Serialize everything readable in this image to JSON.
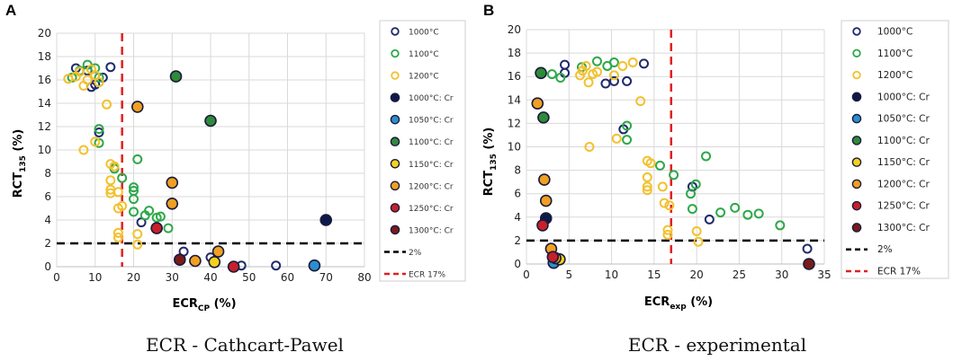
{
  "panel_labels": [
    "A",
    "B"
  ],
  "captions": [
    "ECR - Cathcart-Pawel",
    "ECR - experimental"
  ],
  "legend_entries": [
    {
      "label": "1000°C",
      "color": "#1f2a6b",
      "fill": "none"
    },
    {
      "label": "1100°C",
      "color": "#2ea84a",
      "fill": "none"
    },
    {
      "label": "1200°C",
      "color": "#f2c12e",
      "fill": "none"
    },
    {
      "label": "1000°C: Cr",
      "color": "#1f2a6b",
      "fill": "#0c1a4a"
    },
    {
      "label": "1050°C: Cr",
      "color": "#1f2a6b",
      "fill": "#2b8fce"
    },
    {
      "label": "1100°C: Cr",
      "color": "#1f2a6b",
      "fill": "#2e8b3a"
    },
    {
      "label": "1150°C: Cr",
      "color": "#1f2a6b",
      "fill": "#f5d21a"
    },
    {
      "label": "1200°C: Cr",
      "color": "#1f2a6b",
      "fill": "#f0a020"
    },
    {
      "label": "1250°C: Cr",
      "color": "#1f2a6b",
      "fill": "#c8202a"
    },
    {
      "label": "1300°C: Cr",
      "color": "#1f2a6b",
      "fill": "#7a1a1a"
    },
    {
      "label": "2%",
      "color": "#000000",
      "line": "dash"
    },
    {
      "label": "ECR 17%",
      "color": "#e02020",
      "line": "dash"
    }
  ],
  "chart_data": [
    {
      "type": "scatter",
      "title": "",
      "xlabel": "ECR",
      "xlabel_sub": "CP",
      "xlabel_suffix": " (%)",
      "ylabel": "RCT",
      "ylabel_sub": "135",
      "ylabel_suffix": " (%)",
      "xlim": [
        0,
        80
      ],
      "ylim": [
        0,
        20
      ],
      "xticks": [
        0,
        10,
        20,
        30,
        40,
        50,
        60,
        70,
        80
      ],
      "yticks": [
        0,
        2,
        4,
        6,
        8,
        10,
        12,
        14,
        16,
        18,
        20
      ],
      "hline": 2,
      "vline": 17,
      "series": [
        {
          "name": "1000°C",
          "points": [
            [
              5,
              17.0
            ],
            [
              8,
              16.8
            ],
            [
              9,
              15.4
            ],
            [
              10,
              15.6
            ],
            [
              12,
              16.2
            ],
            [
              14,
              17.1
            ],
            [
              11,
              11.5
            ],
            [
              22,
              3.8
            ],
            [
              33,
              1.3
            ],
            [
              40,
              0.8
            ],
            [
              48,
              0.1
            ],
            [
              57,
              0.1
            ]
          ]
        },
        {
          "name": "1100°C",
          "points": [
            [
              4,
              16.2
            ],
            [
              6,
              16.8
            ],
            [
              8,
              17.3
            ],
            [
              10,
              17.0
            ],
            [
              11,
              16.2
            ],
            [
              11,
              11.8
            ],
            [
              11,
              10.6
            ],
            [
              15,
              8.4
            ],
            [
              17,
              7.6
            ],
            [
              20,
              6.8
            ],
            [
              20,
              5.8
            ],
            [
              20,
              6.5
            ],
            [
              20,
              4.7
            ],
            [
              21,
              9.2
            ],
            [
              23,
              4.4
            ],
            [
              24,
              4.8
            ],
            [
              26,
              4.2
            ],
            [
              27,
              4.3
            ],
            [
              29,
              3.3
            ]
          ]
        },
        {
          "name": "1200°C",
          "points": [
            [
              3,
              16.1
            ],
            [
              5,
              16.3
            ],
            [
              6,
              16.7
            ],
            [
              7,
              15.5
            ],
            [
              8,
              16.0
            ],
            [
              9,
              16.9
            ],
            [
              10,
              16.4
            ],
            [
              11,
              15.8
            ],
            [
              13,
              13.9
            ],
            [
              7,
              10.0
            ],
            [
              10,
              10.7
            ],
            [
              14,
              8.8
            ],
            [
              15,
              8.6
            ],
            [
              14,
              7.4
            ],
            [
              14,
              6.6
            ],
            [
              14,
              6.3
            ],
            [
              16,
              6.4
            ],
            [
              17,
              5.2
            ],
            [
              16,
              5.0
            ],
            [
              16,
              2.9
            ],
            [
              16,
              2.5
            ],
            [
              21,
              2.8
            ],
            [
              21,
              1.9
            ]
          ]
        },
        {
          "name": "1000°C: Cr",
          "points": [
            [
              70,
              4.0
            ]
          ]
        },
        {
          "name": "1050°C: Cr",
          "points": [
            [
              67,
              0.1
            ]
          ]
        },
        {
          "name": "1100°C: Cr",
          "points": [
            [
              31,
              16.3
            ],
            [
              40,
              12.5
            ]
          ]
        },
        {
          "name": "1150°C: Cr",
          "points": [
            [
              41,
              0.4
            ]
          ]
        },
        {
          "name": "1200°C: Cr",
          "points": [
            [
              21,
              13.7
            ],
            [
              30,
              7.2
            ],
            [
              30,
              5.4
            ],
            [
              42,
              1.3
            ],
            [
              36,
              0.5
            ]
          ]
        },
        {
          "name": "1250°C: Cr",
          "points": [
            [
              26,
              3.3
            ],
            [
              46,
              0.0
            ]
          ]
        },
        {
          "name": "1300°C: Cr",
          "points": [
            [
              32,
              0.6
            ]
          ]
        }
      ]
    },
    {
      "type": "scatter",
      "title": "",
      "xlabel": "ECR",
      "xlabel_sub": "exp",
      "xlabel_suffix": " (%)",
      "ylabel": "RCT",
      "ylabel_sub": "135",
      "ylabel_suffix": " (%)",
      "xlim": [
        0,
        35
      ],
      "ylim": [
        0,
        20
      ],
      "xticks": [
        0,
        5,
        10,
        15,
        20,
        25,
        30,
        35
      ],
      "yticks": [
        0,
        2,
        4,
        6,
        8,
        10,
        12,
        14,
        16,
        18,
        20
      ],
      "hline": 2,
      "vline": 17,
      "series": [
        {
          "name": "1000°C",
          "points": [
            [
              4.5,
              17.0
            ],
            [
              4.5,
              16.3
            ],
            [
              9.3,
              15.4
            ],
            [
              10.3,
              15.6
            ],
            [
              11.8,
              15.6
            ],
            [
              13.8,
              17.1
            ],
            [
              11.4,
              11.5
            ],
            [
              19.5,
              6.6
            ],
            [
              21.5,
              3.8
            ],
            [
              33,
              1.3
            ]
          ]
        },
        {
          "name": "1100°C",
          "points": [
            [
              3.0,
              16.2
            ],
            [
              4.0,
              15.9
            ],
            [
              6.5,
              16.8
            ],
            [
              8.3,
              17.3
            ],
            [
              9.5,
              16.9
            ],
            [
              10.3,
              17.2
            ],
            [
              11.8,
              11.8
            ],
            [
              11.8,
              10.6
            ],
            [
              15.7,
              8.4
            ],
            [
              17.3,
              7.6
            ],
            [
              19.3,
              6.0
            ],
            [
              19.5,
              4.7
            ],
            [
              19.9,
              6.8
            ],
            [
              21.1,
              9.2
            ],
            [
              22.8,
              4.4
            ],
            [
              24.5,
              4.8
            ],
            [
              26.0,
              4.2
            ],
            [
              27.3,
              4.3
            ],
            [
              29.8,
              3.3
            ]
          ]
        },
        {
          "name": "1200°C",
          "points": [
            [
              6.3,
              16.1
            ],
            [
              6.6,
              16.5
            ],
            [
              7.0,
              16.9
            ],
            [
              7.3,
              15.5
            ],
            [
              7.8,
              16.2
            ],
            [
              8.3,
              16.4
            ],
            [
              10.3,
              16.1
            ],
            [
              11.3,
              16.9
            ],
            [
              12.5,
              17.2
            ],
            [
              13.4,
              13.9
            ],
            [
              7.4,
              10.0
            ],
            [
              10.6,
              10.7
            ],
            [
              14.2,
              8.8
            ],
            [
              14.6,
              8.6
            ],
            [
              14.2,
              7.4
            ],
            [
              14.2,
              6.6
            ],
            [
              14.2,
              6.3
            ],
            [
              16.0,
              6.6
            ],
            [
              16.2,
              5.2
            ],
            [
              16.8,
              5.0
            ],
            [
              16.6,
              2.9
            ],
            [
              16.6,
              2.5
            ],
            [
              20.0,
              2.8
            ],
            [
              20.2,
              1.9
            ]
          ]
        },
        {
          "name": "1000°C: Cr",
          "points": [
            [
              2.3,
              3.9
            ]
          ]
        },
        {
          "name": "1050°C: Cr",
          "points": [
            [
              3.2,
              0.1
            ]
          ]
        },
        {
          "name": "1100°C: Cr",
          "points": [
            [
              1.7,
              16.3
            ],
            [
              2.0,
              12.5
            ]
          ]
        },
        {
          "name": "1150°C: Cr",
          "points": [
            [
              3.9,
              0.4
            ]
          ]
        },
        {
          "name": "1200°C: Cr",
          "points": [
            [
              1.3,
              13.7
            ],
            [
              2.1,
              7.2
            ],
            [
              2.3,
              5.4
            ],
            [
              2.9,
              1.3
            ],
            [
              3.4,
              0.5
            ]
          ]
        },
        {
          "name": "1250°C: Cr",
          "points": [
            [
              1.9,
              3.3
            ],
            [
              3.1,
              0.6
            ]
          ]
        },
        {
          "name": "1300°C: Cr",
          "points": [
            [
              33.2,
              0.0
            ]
          ]
        }
      ]
    }
  ]
}
